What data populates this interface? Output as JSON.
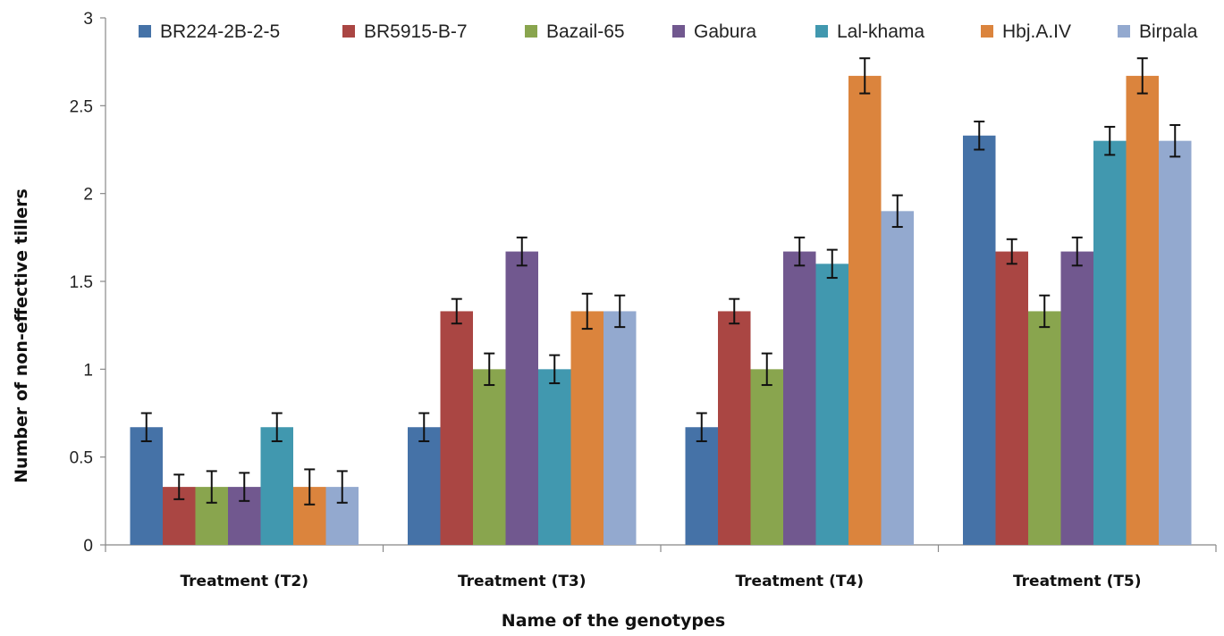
{
  "chart_data": {
    "type": "bar",
    "title": "",
    "xlabel": "Name of the genotypes",
    "ylabel": "Number of non-effective tillers",
    "ylim": [
      0,
      3
    ],
    "yticks": [
      0,
      0.5,
      1,
      1.5,
      2,
      2.5,
      3
    ],
    "ytick_labels": [
      "0",
      "0.5",
      "1",
      "1.5",
      "2",
      "2.5",
      "3"
    ],
    "grid": false,
    "legend_position": "top",
    "categories": [
      "Treatment (T2)",
      "Treatment (T3)",
      "Treatment (T4)",
      "Treatment (T5)"
    ],
    "series": [
      {
        "name": "BR224-2B-2-5",
        "color": "#4572A7",
        "values": [
          0.67,
          0.67,
          0.67,
          2.33
        ],
        "errors": [
          0.08,
          0.08,
          0.08,
          0.08
        ]
      },
      {
        "name": "BR5915-B-7",
        "color": "#AA4643",
        "values": [
          0.33,
          1.33,
          1.33,
          1.67
        ],
        "errors": [
          0.07,
          0.07,
          0.07,
          0.07
        ]
      },
      {
        "name": "Bazail-65",
        "color": "#89A54E",
        "values": [
          0.33,
          1.0,
          1.0,
          1.33
        ],
        "errors": [
          0.09,
          0.09,
          0.09,
          0.09
        ]
      },
      {
        "name": "Gabura",
        "color": "#71588F",
        "values": [
          0.33,
          1.67,
          1.67,
          1.67
        ],
        "errors": [
          0.08,
          0.08,
          0.08,
          0.08
        ]
      },
      {
        "name": "Lal-khama",
        "color": "#4198AF",
        "values": [
          0.67,
          1.0,
          1.6,
          2.3
        ],
        "errors": [
          0.08,
          0.08,
          0.08,
          0.08
        ]
      },
      {
        "name": "Hbj.A.IV",
        "color": "#DB843D",
        "values": [
          0.33,
          1.33,
          2.67,
          2.67
        ],
        "errors": [
          0.1,
          0.1,
          0.1,
          0.1
        ]
      },
      {
        "name": "Birpala",
        "color": "#93A9CF",
        "values": [
          0.33,
          1.33,
          1.9,
          2.3
        ],
        "errors": [
          0.09,
          0.09,
          0.09,
          0.09
        ]
      }
    ]
  }
}
